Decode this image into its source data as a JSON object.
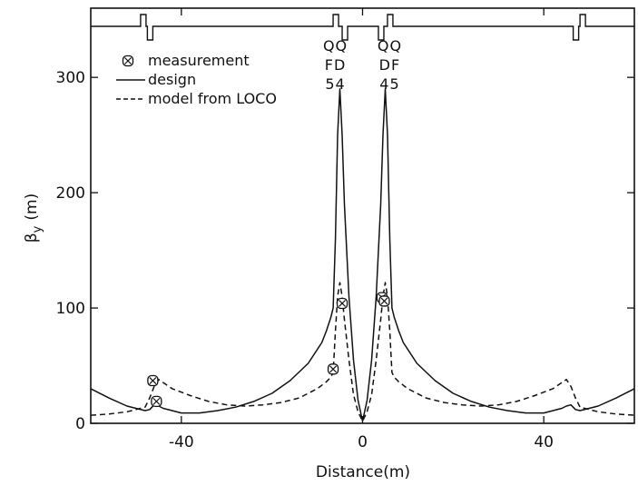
{
  "chart_data": {
    "type": "line",
    "title": "",
    "xlabel": "Distance(m)",
    "ylabel_main": "β",
    "ylabel_sub": "y",
    "ylabel_unit": "(m)",
    "xlim": [
      -60,
      60
    ],
    "ylim": [
      0,
      360
    ],
    "xticks": [
      {
        "value": -40,
        "label": "-40"
      },
      {
        "value": 0,
        "label": "0"
      },
      {
        "value": 40,
        "label": "40"
      }
    ],
    "yticks": [
      {
        "value": 0,
        "label": "0"
      },
      {
        "value": 100,
        "label": "100"
      },
      {
        "value": 200,
        "label": "200"
      },
      {
        "value": 300,
        "label": "300"
      }
    ],
    "grid": false,
    "legend_position": "top-left",
    "legend": [
      {
        "label": "measurement",
        "style": "marker"
      },
      {
        "label": "design",
        "style": "solid"
      },
      {
        "label": "model from LOCO",
        "style": "dashed"
      }
    ],
    "magnet_labels": [
      {
        "x": -6,
        "lines": [
          "QQ",
          "FD",
          "54"
        ]
      },
      {
        "x": 6,
        "lines": [
          "QQ",
          "DF",
          "45"
        ]
      }
    ],
    "series": [
      {
        "label": "design",
        "style": "solid",
        "x": [
          -60,
          -56,
          -52,
          -48,
          -47,
          -46,
          -45,
          -44,
          -40,
          -36,
          -32,
          -28,
          -24,
          -20,
          -16,
          -12,
          -9,
          -8,
          -7,
          -6.5,
          -6,
          -5.5,
          -5,
          -4.5,
          -4,
          -3,
          -2,
          -1,
          0,
          1,
          2,
          3,
          4,
          4.5,
          5,
          5.5,
          6,
          6.5,
          7,
          8,
          9,
          12,
          16,
          20,
          24,
          28,
          32,
          36,
          40,
          44,
          45,
          46,
          47,
          48,
          52,
          56,
          60
        ],
        "y": [
          30,
          22,
          15,
          11,
          12,
          16,
          15,
          13,
          9,
          9,
          11,
          14,
          19,
          26,
          37,
          52,
          70,
          80,
          92,
          100,
          160,
          250,
          290,
          250,
          190,
          110,
          55,
          20,
          2,
          20,
          55,
          110,
          190,
          250,
          290,
          250,
          160,
          100,
          92,
          80,
          70,
          52,
          37,
          26,
          19,
          14,
          11,
          9,
          9,
          13,
          15,
          16,
          12,
          11,
          15,
          22,
          30
        ]
      },
      {
        "label": "model from LOCO",
        "style": "dashed",
        "x": [
          -60,
          -56,
          -52,
          -48,
          -47,
          -46,
          -45,
          -42,
          -38,
          -34,
          -30,
          -26,
          -22,
          -18,
          -14,
          -10,
          -8,
          -7,
          -6.5,
          -6,
          -5.5,
          -5,
          -4.5,
          -4,
          -3,
          -2,
          -1,
          0,
          1,
          2,
          3,
          4,
          4.5,
          5,
          5.5,
          6,
          6.5,
          7,
          8,
          10,
          14,
          18,
          22,
          26,
          30,
          34,
          38,
          42,
          45,
          46,
          47,
          48,
          52,
          56,
          60
        ],
        "y": [
          7,
          8,
          10,
          14,
          22,
          32,
          38,
          30,
          24,
          19,
          16,
          15,
          16,
          18,
          22,
          30,
          36,
          40,
          44,
          80,
          110,
          122,
          110,
          90,
          55,
          25,
          10,
          2,
          10,
          25,
          55,
          90,
          110,
          122,
          110,
          80,
          44,
          40,
          36,
          30,
          22,
          18,
          16,
          15,
          16,
          19,
          24,
          30,
          38,
          32,
          22,
          14,
          10,
          8,
          7
        ]
      },
      {
        "label": "measurement",
        "style": "marker",
        "x": [
          -45.5,
          -46.3,
          -6.5,
          -4.5,
          4.3,
          4.8
        ],
        "y": [
          19,
          37,
          47,
          104,
          109,
          106
        ]
      }
    ]
  }
}
